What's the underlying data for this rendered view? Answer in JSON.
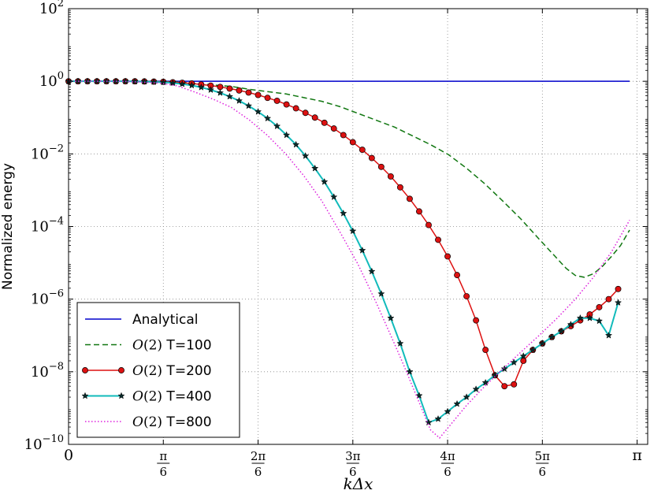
{
  "chart_data": {
    "type": "line",
    "xlabel": "kΔx",
    "ylabel": "Normalized energy",
    "xlim": [
      0,
      3.2
    ],
    "ylim": [
      1e-10,
      100
    ],
    "yscale": "log",
    "grid": true,
    "legend_position": "lower-left",
    "x_ticks": [
      {
        "value": 0,
        "num": "0",
        "den": ""
      },
      {
        "value": 0.5236,
        "num": "π",
        "den": "6"
      },
      {
        "value": 1.0472,
        "num": "2π",
        "den": "6"
      },
      {
        "value": 1.5708,
        "num": "3π",
        "den": "6"
      },
      {
        "value": 2.0944,
        "num": "4π",
        "den": "6"
      },
      {
        "value": 2.618,
        "num": "5π",
        "den": "6"
      },
      {
        "value": 3.1416,
        "num": "π",
        "den": ""
      }
    ],
    "y_ticks": [
      {
        "value": 1e-10,
        "base": "10",
        "exp": "−10"
      },
      {
        "value": 1e-08,
        "base": "10",
        "exp": "−8"
      },
      {
        "value": 1e-06,
        "base": "10",
        "exp": "−6"
      },
      {
        "value": 0.0001,
        "base": "10",
        "exp": "−4"
      },
      {
        "value": 0.01,
        "base": "10",
        "exp": "−2"
      },
      {
        "value": 1,
        "base": "10",
        "exp": "0"
      },
      {
        "value": 100,
        "base": "10",
        "exp": "2"
      }
    ],
    "series": [
      {
        "name": "Analytical",
        "style": "solid",
        "marker": "none",
        "color": "#0000cc",
        "x": [
          0.0,
          3.1
        ],
        "y": [
          1,
          1
        ]
      },
      {
        "name": "T=100",
        "name_prefix": "O",
        "name_order": "(2)",
        "style": "dashed",
        "marker": "none",
        "color": "#117711",
        "x": [
          0.0,
          0.3,
          0.6,
          0.9,
          1.0,
          1.2,
          1.4,
          1.5,
          1.6,
          1.8,
          2.0,
          2.1,
          2.2,
          2.3,
          2.4,
          2.5,
          2.6,
          2.7,
          2.75,
          2.8,
          2.85,
          2.9,
          2.95,
          3.0,
          3.05,
          3.1
        ],
        "y": [
          1,
          1,
          0.96,
          0.72,
          0.6,
          0.45,
          0.28,
          0.2,
          0.13,
          0.055,
          0.018,
          0.0095,
          0.004,
          0.0015,
          0.0005,
          0.00016,
          4.5e-05,
          1.3e-05,
          7e-06,
          4.5e-06,
          4e-06,
          5e-06,
          8e-06,
          1.5e-05,
          3e-05,
          8e-05
        ]
      },
      {
        "name": "T=200",
        "name_prefix": "O",
        "name_order": "(2)",
        "style": "solid",
        "marker": "circle",
        "color": "#dd1111",
        "x": [
          0.0,
          0.0523,
          0.1047,
          0.157,
          0.2094,
          0.2618,
          0.3141,
          0.3665,
          0.4189,
          0.4712,
          0.5236,
          0.5759,
          0.6283,
          0.6806,
          0.733,
          0.7854,
          0.8377,
          0.8901,
          0.9424,
          0.9948,
          1.0472,
          1.0995,
          1.1519,
          1.2042,
          1.2566,
          1.309,
          1.3613,
          1.4137,
          1.466,
          1.5184,
          1.5708,
          1.6231,
          1.6755,
          1.7278,
          1.7802,
          1.8326,
          1.8849,
          1.9373,
          1.9896,
          2.042,
          2.0944,
          2.1467,
          2.1991,
          2.2514,
          2.3038,
          2.3562,
          2.4085,
          2.4609,
          2.5132,
          2.5656,
          2.618,
          2.6703,
          2.7227,
          2.775,
          2.8274,
          2.8798,
          2.9321,
          2.9845,
          3.0368
        ],
        "y": [
          1,
          1,
          1,
          1,
          1,
          1,
          1,
          1,
          0.99,
          0.98,
          0.97,
          0.94,
          0.91,
          0.87,
          0.82,
          0.76,
          0.7,
          0.63,
          0.56,
          0.49,
          0.42,
          0.35,
          0.29,
          0.23,
          0.18,
          0.135,
          0.1,
          0.072,
          0.05,
          0.033,
          0.021,
          0.013,
          0.0077,
          0.0044,
          0.0024,
          0.0012,
          0.00058,
          0.00026,
          0.00011,
          4.3e-05,
          1.5e-05,
          4.6e-06,
          1.2e-06,
          2.6e-07,
          4e-08,
          8e-09,
          4e-09,
          4.5e-09,
          2e-08,
          4e-08,
          6e-08,
          9e-08,
          1.3e-07,
          1.8e-07,
          2.6e-07,
          3.8e-07,
          6e-07,
          1e-06,
          1.9e-06
        ]
      },
      {
        "name": "T=400",
        "name_prefix": "O",
        "name_order": "(2)",
        "style": "solid",
        "marker": "star",
        "color": "#11bbbb",
        "x": [
          0.0,
          0.0523,
          0.1047,
          0.157,
          0.2094,
          0.2618,
          0.3141,
          0.3665,
          0.4189,
          0.4712,
          0.5236,
          0.5759,
          0.6283,
          0.6806,
          0.733,
          0.7854,
          0.8377,
          0.8901,
          0.9424,
          0.9948,
          1.0472,
          1.0995,
          1.1519,
          1.2042,
          1.2566,
          1.309,
          1.3613,
          1.4137,
          1.466,
          1.5184,
          1.5708,
          1.6231,
          1.6755,
          1.7278,
          1.7802,
          1.8326,
          1.8849,
          1.9373,
          1.9896,
          2.042,
          2.0944,
          2.1467,
          2.1991,
          2.2514,
          2.3038,
          2.3562,
          2.4085,
          2.4609,
          2.5132,
          2.5656,
          2.618,
          2.6703,
          2.7227,
          2.775,
          2.8274,
          2.8798,
          2.9321,
          2.9845,
          3.0368
        ],
        "y": [
          1,
          1,
          1,
          1,
          1,
          1,
          1,
          0.99,
          0.98,
          0.96,
          0.94,
          0.9,
          0.84,
          0.77,
          0.68,
          0.58,
          0.48,
          0.38,
          0.29,
          0.21,
          0.145,
          0.095,
          0.058,
          0.033,
          0.018,
          0.0088,
          0.004,
          0.0017,
          0.00065,
          0.00023,
          7.5e-05,
          2.2e-05,
          5.8e-06,
          1.4e-06,
          3e-07,
          6e-08,
          1e-08,
          2.2e-09,
          4e-10,
          5e-10,
          8e-10,
          1.3e-09,
          2e-09,
          3.3e-09,
          5e-09,
          8e-09,
          1.2e-08,
          1.8e-08,
          2.7e-08,
          4e-08,
          6e-08,
          9e-08,
          1.3e-07,
          2e-07,
          3e-07,
          3e-07,
          2.5e-07,
          1e-07,
          8e-07
        ]
      },
      {
        "name": "T=800",
        "name_prefix": "O",
        "name_order": "(2)",
        "style": "dotted",
        "marker": "none",
        "color": "#dd22dd",
        "x": [
          0.0,
          0.3,
          0.5,
          0.6,
          0.7,
          0.8,
          0.9,
          1.0,
          1.1,
          1.2,
          1.3,
          1.4,
          1.5,
          1.6,
          1.7,
          1.8,
          1.85,
          1.9,
          1.95,
          2.0,
          2.05,
          2.1,
          2.2,
          2.3,
          2.4,
          2.5,
          2.6,
          2.7,
          2.8,
          2.9,
          3.0,
          3.1
        ],
        "y": [
          1,
          1,
          0.9,
          0.75,
          0.5,
          0.32,
          0.19,
          0.085,
          0.032,
          0.01,
          0.0025,
          0.0005,
          7e-05,
          9e-06,
          8e-07,
          6e-08,
          1.6e-08,
          4e-09,
          1e-09,
          2.5e-10,
          1.5e-10,
          3e-10,
          1.2e-09,
          4e-09,
          1.2e-08,
          3.5e-08,
          1e-07,
          3e-07,
          1e-06,
          4e-06,
          2e-05,
          0.00015
        ]
      }
    ]
  }
}
